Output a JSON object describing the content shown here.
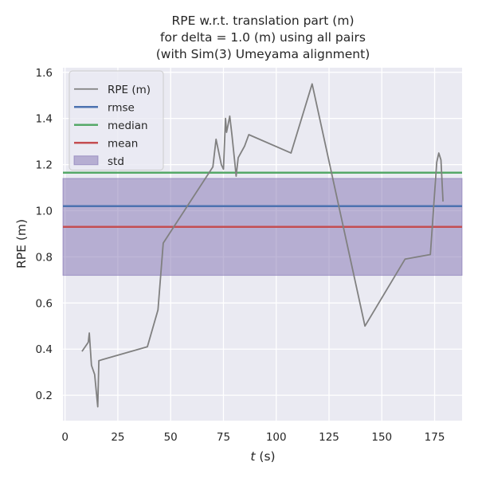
{
  "chart_data": {
    "type": "line",
    "title": [
      "RPE w.r.t. translation part (m)",
      "for delta = 1.0 (m) using all pairs",
      "(with Sim(3) Umeyama alignment)"
    ],
    "xlabel": "t (s)",
    "ylabel": "RPE (m)",
    "xlim": [
      -1,
      188
    ],
    "ylim": [
      0.09,
      1.62
    ],
    "xticks": [
      0,
      25,
      50,
      75,
      100,
      125,
      150,
      175
    ],
    "yticks": [
      0.2,
      0.4,
      0.6,
      0.8,
      1.0,
      1.2,
      1.4,
      1.6
    ],
    "xtick_labels": [
      "0",
      "25",
      "50",
      "75",
      "100",
      "125",
      "150",
      "175"
    ],
    "ytick_labels": [
      "0.2",
      "0.4",
      "0.6",
      "0.8",
      "1.0",
      "1.2",
      "1.4",
      "1.6"
    ],
    "grid": true,
    "legend_position": "top-left",
    "series": [
      {
        "name": "RPE (m)",
        "color": "#808080",
        "x": [
          8,
          11,
          11.5,
          12.5,
          14,
          15.5,
          16,
          39,
          44,
          46.5,
          70,
          71.5,
          74,
          75,
          76,
          76.5,
          78,
          79,
          80.5,
          81,
          82,
          85,
          87,
          107,
          117,
          142,
          161,
          173,
          176,
          177,
          178,
          179
        ],
        "y": [
          0.39,
          0.43,
          0.47,
          0.33,
          0.29,
          0.15,
          0.35,
          0.41,
          0.57,
          0.86,
          1.19,
          1.31,
          1.2,
          1.18,
          1.4,
          1.34,
          1.41,
          1.33,
          1.2,
          1.15,
          1.23,
          1.28,
          1.33,
          1.25,
          1.55,
          0.5,
          0.79,
          0.81,
          1.21,
          1.25,
          1.22,
          1.04
        ]
      }
    ],
    "stats": [
      {
        "name": "rmse",
        "value": 1.02,
        "color": "#4c72b0"
      },
      {
        "name": "median",
        "value": 1.165,
        "color": "#55a868"
      },
      {
        "name": "mean",
        "value": 0.93,
        "color": "#c44e52"
      }
    ],
    "std": {
      "name": "std",
      "low": 0.72,
      "high": 1.14,
      "color": "#8172b2"
    }
  }
}
